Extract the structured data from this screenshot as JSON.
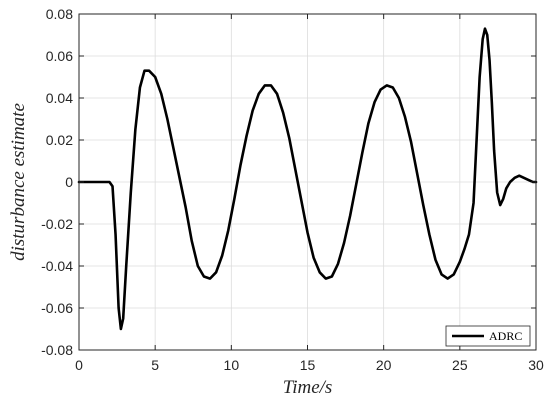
{
  "chart_data": {
    "type": "line",
    "title": "",
    "xlabel": "Time/s",
    "ylabel": "disturbance estimate",
    "xlim": [
      0,
      30
    ],
    "ylim": [
      -0.08,
      0.08
    ],
    "xticks": [
      0,
      5,
      10,
      15,
      20,
      25,
      30
    ],
    "xtick_labels": [
      "0",
      "5",
      "10",
      "15",
      "20",
      "25",
      "30"
    ],
    "yticks": [
      -0.08,
      -0.06,
      -0.04,
      -0.02,
      0,
      0.02,
      0.04,
      0.06,
      0.08
    ],
    "ytick_labels": [
      "-0.08",
      "-0.06",
      "-0.04",
      "-0.02",
      "0",
      "0.02",
      "0.04",
      "0.06",
      "0.08"
    ],
    "grid": true,
    "legend_position": "bottom-right",
    "series": [
      {
        "name": "ADRC",
        "color": "#000000",
        "x": [
          0,
          2.0,
          2.2,
          2.4,
          2.6,
          2.75,
          2.9,
          3.1,
          3.4,
          3.7,
          4.0,
          4.3,
          4.6,
          5.0,
          5.4,
          5.8,
          6.2,
          6.6,
          7.0,
          7.4,
          7.8,
          8.2,
          8.6,
          9.0,
          9.4,
          9.8,
          10.2,
          10.6,
          11.0,
          11.4,
          11.8,
          12.2,
          12.6,
          13.0,
          13.4,
          13.8,
          14.2,
          14.6,
          15.0,
          15.4,
          15.8,
          16.2,
          16.6,
          17.0,
          17.4,
          17.8,
          18.2,
          18.6,
          19.0,
          19.4,
          19.8,
          20.2,
          20.6,
          21.0,
          21.4,
          21.8,
          22.2,
          22.6,
          23.0,
          23.4,
          23.8,
          24.2,
          24.6,
          25.0,
          25.3,
          25.6,
          25.9,
          26.1,
          26.3,
          26.5,
          26.65,
          26.8,
          26.95,
          27.1,
          27.25,
          27.45,
          27.65,
          27.85,
          28.05,
          28.3,
          28.6,
          28.9,
          29.2,
          29.5,
          29.8,
          30.0
        ],
        "y": [
          0,
          0,
          -0.002,
          -0.025,
          -0.06,
          -0.07,
          -0.065,
          -0.04,
          -0.005,
          0.025,
          0.045,
          0.053,
          0.053,
          0.05,
          0.042,
          0.03,
          0.016,
          0.002,
          -0.012,
          -0.028,
          -0.04,
          -0.045,
          -0.046,
          -0.043,
          -0.035,
          -0.023,
          -0.008,
          0.008,
          0.022,
          0.034,
          0.042,
          0.046,
          0.046,
          0.042,
          0.033,
          0.021,
          0.006,
          -0.009,
          -0.024,
          -0.036,
          -0.043,
          -0.046,
          -0.045,
          -0.039,
          -0.029,
          -0.016,
          -0.001,
          0.014,
          0.028,
          0.038,
          0.044,
          0.046,
          0.045,
          0.04,
          0.031,
          0.019,
          0.004,
          -0.011,
          -0.025,
          -0.037,
          -0.044,
          -0.046,
          -0.044,
          -0.038,
          -0.032,
          -0.025,
          -0.01,
          0.02,
          0.05,
          0.068,
          0.073,
          0.07,
          0.058,
          0.038,
          0.015,
          -0.005,
          -0.011,
          -0.008,
          -0.003,
          0.0,
          0.002,
          0.003,
          0.002,
          0.001,
          0.0,
          0.0
        ]
      }
    ]
  }
}
